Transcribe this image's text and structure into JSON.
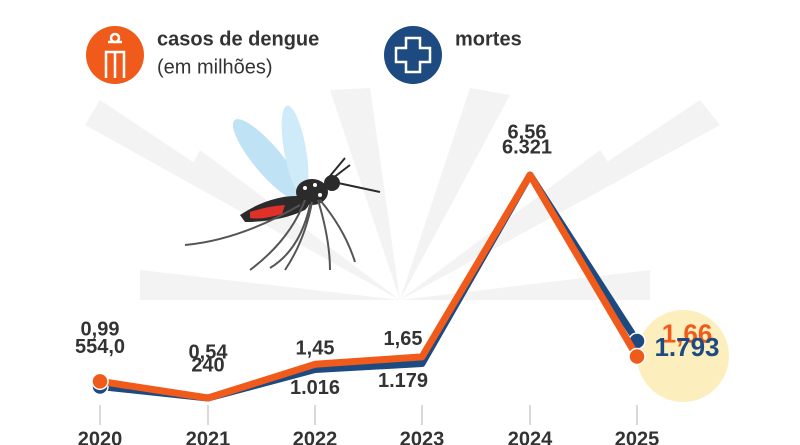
{
  "chart_data": {
    "type": "line",
    "categories": [
      "2020",
      "2021",
      "2022",
      "2023",
      "2024",
      "2025"
    ],
    "series": [
      {
        "name": "casos de dengue",
        "unit": "(em milhões)",
        "color": "#f05a1a",
        "values": [
          0.99,
          0.54,
          1.45,
          1.65,
          6.56,
          1.66
        ],
        "value_labels": [
          "0,99",
          "0,54",
          "1,45",
          "1,65",
          "6,56",
          "1,66"
        ]
      },
      {
        "name": "mortes",
        "color": "#1d4a80",
        "values": [
          554,
          240,
          1016,
          1179,
          6321,
          1793
        ],
        "value_labels": [
          "554,0",
          "240",
          "1.016",
          "1.179",
          "6.321",
          "1.793"
        ]
      }
    ]
  }
}
